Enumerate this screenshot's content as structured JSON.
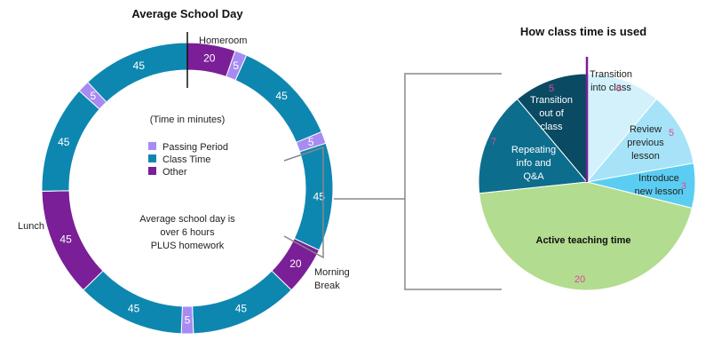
{
  "colors": {
    "passing": "#a78bf2",
    "class_time": "#0e87b0",
    "other": "#7a1f97",
    "transition_out": "#0a4a63",
    "repeating": "#0d6d8d",
    "active": "#b2dc8f",
    "transition_into": "#d2f1fb",
    "review": "#a6e3f8",
    "introduce": "#5bcdf2",
    "value_text": "#e0489a",
    "connector": "#888888",
    "marker": "#7a1f97"
  },
  "chart_data": [
    {
      "type": "donut",
      "title": "Average School Day",
      "subtitle": "(Time in minutes)",
      "center_text": [
        "Average school day is",
        "over 6 hours",
        "PLUS homework"
      ],
      "legend": [
        {
          "label": "Passing Period",
          "category": "passing"
        },
        {
          "label": "Class Time",
          "category": "class_time"
        },
        {
          "label": "Other",
          "category": "other"
        }
      ],
      "segments": [
        {
          "value": 20,
          "category": "other",
          "label": "Homeroom"
        },
        {
          "value": 5,
          "category": "passing",
          "label": ""
        },
        {
          "value": 45,
          "category": "class_time",
          "label": ""
        },
        {
          "value": 5,
          "category": "passing",
          "label": ""
        },
        {
          "value": 45,
          "category": "class_time",
          "label": ""
        },
        {
          "value": 20,
          "category": "other",
          "label": "Morning Break"
        },
        {
          "value": 45,
          "category": "class_time",
          "label": ""
        },
        {
          "value": 5,
          "category": "passing",
          "label": ""
        },
        {
          "value": 45,
          "category": "class_time",
          "label": ""
        },
        {
          "value": 45,
          "category": "other",
          "label": "Lunch"
        },
        {
          "value": 45,
          "category": "class_time",
          "label": ""
        },
        {
          "value": 5,
          "category": "passing",
          "label": ""
        },
        {
          "value": 45,
          "category": "class_time",
          "label": ""
        }
      ]
    },
    {
      "type": "pie",
      "title": "How class time is used",
      "slices": [
        {
          "value": 5,
          "label": "Transition into class",
          "color_key": "transition_into",
          "label_color": "#222222"
        },
        {
          "value": 5,
          "label": "Review previous lesson",
          "color_key": "review",
          "label_color": "#222222"
        },
        {
          "value": 3,
          "label": "Introduce new lesson",
          "color_key": "introduce",
          "label_color": "#222222"
        },
        {
          "value": 20,
          "label": "Active teaching time",
          "color_key": "active",
          "label_color": "#111111"
        },
        {
          "value": 7,
          "label": "Repeating info and Q&A",
          "color_key": "repeating",
          "label_color": "#ffffff"
        },
        {
          "value": 5,
          "label": "Transition out of class",
          "color_key": "transition_out",
          "label_color": "#ffffff"
        }
      ]
    }
  ]
}
